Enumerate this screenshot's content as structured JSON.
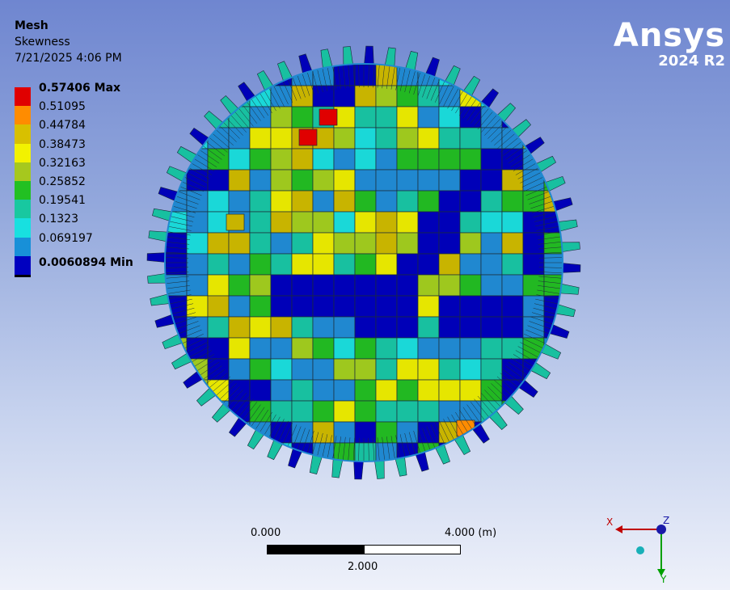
{
  "result": {
    "title": "Mesh",
    "quantity": "Skewness",
    "timestamp": "7/21/2025 4:06 PM"
  },
  "legend": {
    "entries": [
      {
        "label": "0.57406 Max",
        "color": "#e00000",
        "bold": true
      },
      {
        "label": "0.51095",
        "color": "#ff8c00"
      },
      {
        "label": "0.44784",
        "color": "#d8c000"
      },
      {
        "label": "0.38473",
        "color": "#f2f200"
      },
      {
        "label": "0.32163",
        "color": "#a6c81e"
      },
      {
        "label": "0.25852",
        "color": "#22c022"
      },
      {
        "label": "0.19541",
        "color": "#18c8a0"
      },
      {
        "label": "0.1323",
        "color": "#18e0e0"
      },
      {
        "label": "0.069197",
        "color": "#1890d8"
      },
      {
        "label": "",
        "color": "#0000c0"
      }
    ],
    "min_label": "0.0060894 Min"
  },
  "logo": {
    "brand": "Ansys",
    "version": "2024 R2"
  },
  "scale_bar": {
    "start": "0.000",
    "end": "4.000 (m)",
    "mid": "2.000"
  },
  "triad": {
    "x": "X",
    "y": "Y",
    "z": "Z",
    "x_color": "#c00000",
    "y_color": "#00a000",
    "z_color": "#1a1aa8"
  },
  "mesh_colors": {
    "max": "#e00000",
    "orange": "#ff8c00",
    "ochre": "#c8b400",
    "yellow": "#e6e600",
    "lime": "#9ec81e",
    "green": "#22b822",
    "teal": "#18c0a0",
    "cyan": "#1ad8d8",
    "blue": "#2088d0",
    "min": "#0000b8"
  }
}
